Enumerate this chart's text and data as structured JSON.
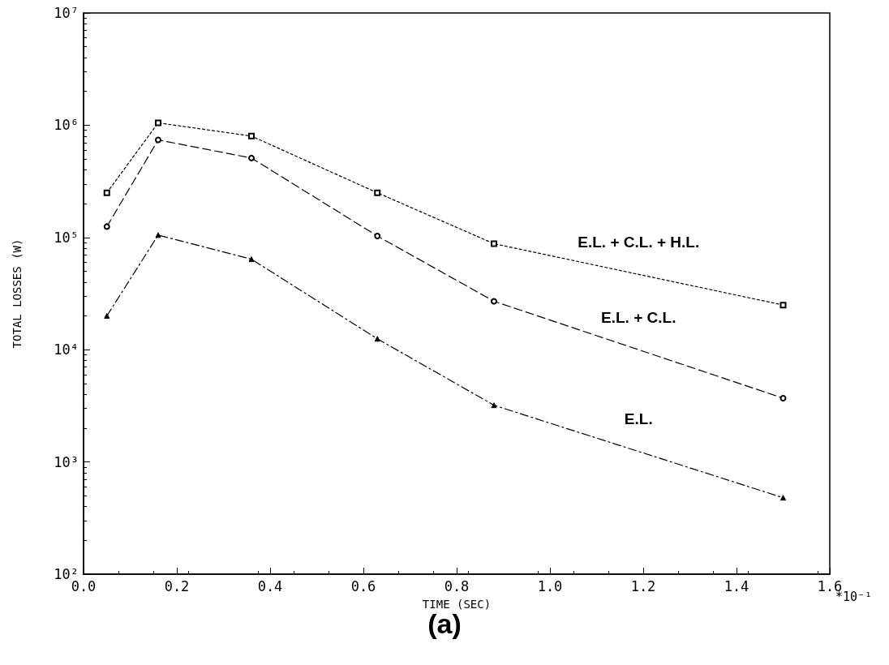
{
  "chart_data": {
    "type": "line",
    "xlabel": "TIME (SEC)",
    "ylabel": "TOTAL LOSSES (W)",
    "log": "y",
    "grid": false,
    "legend": false,
    "xlim": [
      0,
      1.6
    ],
    "xticks": [
      {
        "value": 0,
        "label": "0.0"
      },
      {
        "value": 0.2,
        "label": "0.2"
      },
      {
        "value": 0.4,
        "label": "0.4"
      },
      {
        "value": 0.6,
        "label": "0.6"
      },
      {
        "value": 0.8,
        "label": "0.8"
      },
      {
        "value": 1,
        "label": "1.0"
      },
      {
        "value": 1.2,
        "label": "1.2"
      },
      {
        "value": 1.4,
        "label": "1.4"
      },
      {
        "value": 1.6,
        "label": "1.6"
      }
    ],
    "ylim": [
      100,
      10000000
    ],
    "yticks": [
      {
        "value": 100,
        "label": "10²"
      },
      {
        "value": 1000,
        "label": "10³"
      },
      {
        "value": 10000,
        "label": "10⁴"
      },
      {
        "value": 100000,
        "label": "10⁵"
      },
      {
        "value": 1000000,
        "label": "10⁶"
      },
      {
        "value": 10000000,
        "label": "10⁷"
      }
    ],
    "x": [
      0.05,
      0.16,
      0.36,
      0.63,
      0.88,
      1.5
    ],
    "series": [
      {
        "name": "E.L. + C.L. + H.L.",
        "color": "#000000",
        "marker": "square",
        "line_style": "dotted",
        "values": [
          250000,
          1050000,
          800000,
          250000,
          88000,
          25000
        ]
      },
      {
        "name": "E.L. + C.L.",
        "color": "#000000",
        "marker": "circle",
        "line_style": "dashed",
        "values": [
          125000,
          740000,
          510000,
          103000,
          27000,
          3700
        ]
      },
      {
        "name": "E.L.",
        "color": "#000000",
        "marker": "triangle",
        "line_style": "dashdot",
        "values": [
          20000,
          105000,
          64000,
          12500,
          3200,
          480
        ]
      }
    ],
    "annotations": [
      "*10⁻¹",
      "(a)"
    ]
  }
}
